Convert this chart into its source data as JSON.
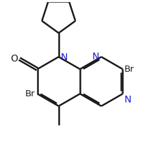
{
  "background": "#ffffff",
  "line_color": "#1a1a1a",
  "n_color": "#1a1acc",
  "bond_lw": 1.8,
  "figsize": [
    2.34,
    2.27
  ],
  "dpi": 100,
  "xlim": [
    0.0,
    10.0
  ],
  "ylim": [
    0.0,
    9.5
  ],
  "font_size": 10,
  "font_size_br": 9.5
}
